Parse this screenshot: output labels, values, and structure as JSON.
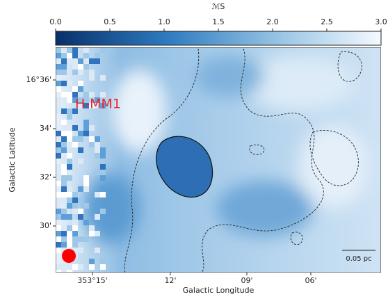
{
  "chart_data": {
    "type": "heatmap",
    "colorbar_label": "ℳS",
    "clim": [
      0,
      3
    ],
    "cticks": [
      {
        "value": 0,
        "label": "0.0"
      },
      0.5,
      {
        "value": 1,
        "label": "1.0"
      },
      1.5,
      {
        "value": 2,
        "label": "2.0"
      },
      2.5,
      {
        "value": 3,
        "label": "3.0"
      }
    ],
    "xlabel": "Galactic Longitude",
    "ylabel": "Galactic Latitude",
    "xtick_labels": [
      "353°15'",
      "12'",
      "09'",
      "06'"
    ],
    "ytick_labels": [
      "16°36'",
      "34'",
      "32'",
      "30'"
    ],
    "annotation": "H-MM1",
    "scale_bar": "0.05 pc"
  }
}
